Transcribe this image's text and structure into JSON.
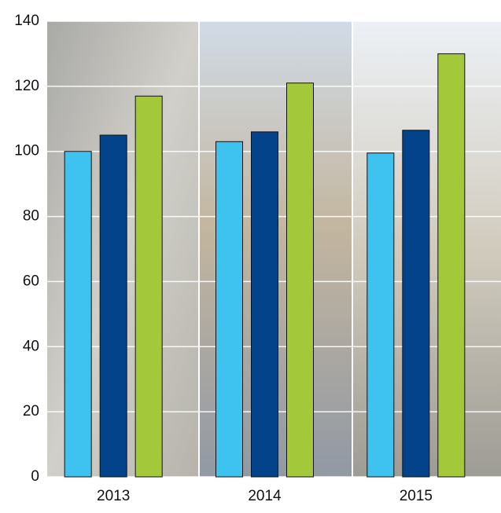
{
  "chart_data": {
    "type": "bar",
    "categories": [
      "2013",
      "2014",
      "2015"
    ],
    "series": [
      {
        "color": "#3ec3f0",
        "values": [
          100,
          103,
          99.5
        ]
      },
      {
        "color": "#03438a",
        "values": [
          105,
          106,
          106.5
        ]
      },
      {
        "color": "#a3c93a",
        "values": [
          117,
          121,
          130
        ]
      }
    ],
    "ylim": [
      0,
      140
    ],
    "yticks": [
      0,
      20,
      40,
      60,
      80,
      100,
      120,
      140
    ],
    "grid": true
  }
}
